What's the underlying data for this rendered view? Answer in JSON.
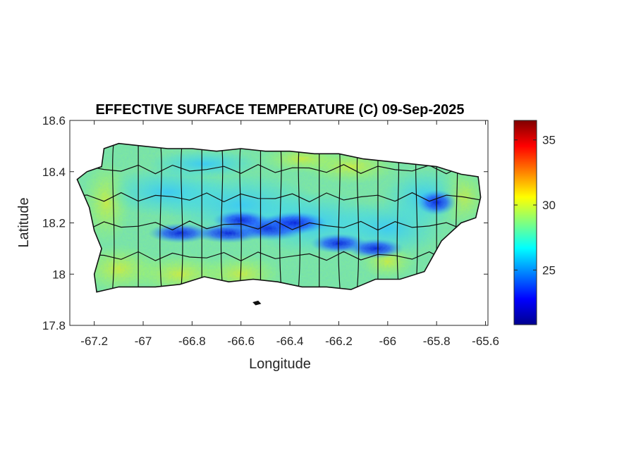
{
  "chart_data": {
    "type": "heatmap",
    "title": "EFFECTIVE SURFACE TEMPERATURE (C) 09-Sep-2025",
    "xlabel": "Longitude",
    "ylabel": "Latitude",
    "xlim": [
      -67.3,
      -65.59
    ],
    "ylim": [
      17.8,
      18.6
    ],
    "x_ticks": [
      -67.2,
      -67,
      -66.8,
      -66.6,
      -66.4,
      -66.2,
      -66,
      -65.8,
      -65.6
    ],
    "x_tick_labels": [
      "-67.2",
      "-67",
      "-66.8",
      "-66.6",
      "-66.4",
      "-66.2",
      "-66",
      "-65.8",
      "-65.6"
    ],
    "y_ticks": [
      17.8,
      18,
      18.2,
      18.4,
      18.6
    ],
    "y_tick_labels": [
      "17.8",
      "18",
      "18.2",
      "18.4",
      "18.6"
    ],
    "colorbar": {
      "colormap": "jet",
      "range": [
        20.8,
        36.5
      ],
      "ticks": [
        25,
        30,
        35
      ],
      "tick_labels": [
        "25",
        "30",
        "35"
      ]
    },
    "grid": false,
    "field_description_hidden": true,
    "coastline": [
      [
        -67.27,
        18.37
      ],
      [
        -67.23,
        18.4
      ],
      [
        -67.17,
        18.42
      ],
      [
        -67.16,
        18.49
      ],
      [
        -67.1,
        18.51
      ],
      [
        -67.0,
        18.5
      ],
      [
        -66.9,
        18.49
      ],
      [
        -66.8,
        18.49
      ],
      [
        -66.7,
        18.48
      ],
      [
        -66.6,
        18.49
      ],
      [
        -66.5,
        18.48
      ],
      [
        -66.4,
        18.48
      ],
      [
        -66.3,
        18.47
      ],
      [
        -66.2,
        18.47
      ],
      [
        -66.1,
        18.45
      ],
      [
        -66.0,
        18.44
      ],
      [
        -65.9,
        18.43
      ],
      [
        -65.8,
        18.42
      ],
      [
        -65.7,
        18.39
      ],
      [
        -65.63,
        18.38
      ],
      [
        -65.62,
        18.3
      ],
      [
        -65.64,
        18.22
      ],
      [
        -65.7,
        18.2
      ],
      [
        -65.78,
        18.13
      ],
      [
        -65.85,
        18.01
      ],
      [
        -65.95,
        17.98
      ],
      [
        -66.05,
        17.98
      ],
      [
        -66.15,
        17.94
      ],
      [
        -66.25,
        17.95
      ],
      [
        -66.35,
        17.95
      ],
      [
        -66.45,
        17.97
      ],
      [
        -66.55,
        17.98
      ],
      [
        -66.65,
        17.97
      ],
      [
        -66.75,
        17.99
      ],
      [
        -66.85,
        17.96
      ],
      [
        -66.95,
        17.95
      ],
      [
        -67.1,
        17.95
      ],
      [
        -67.19,
        17.93
      ],
      [
        -67.2,
        18.0
      ],
      [
        -67.17,
        18.1
      ],
      [
        -67.2,
        18.17
      ],
      [
        -67.22,
        18.26
      ],
      [
        -67.27,
        18.37
      ]
    ],
    "islets": [
      [
        [
          -66.55,
          17.89
        ],
        [
          -66.53,
          17.895
        ],
        [
          -66.52,
          17.885
        ],
        [
          -66.54,
          17.88
        ]
      ]
    ]
  }
}
